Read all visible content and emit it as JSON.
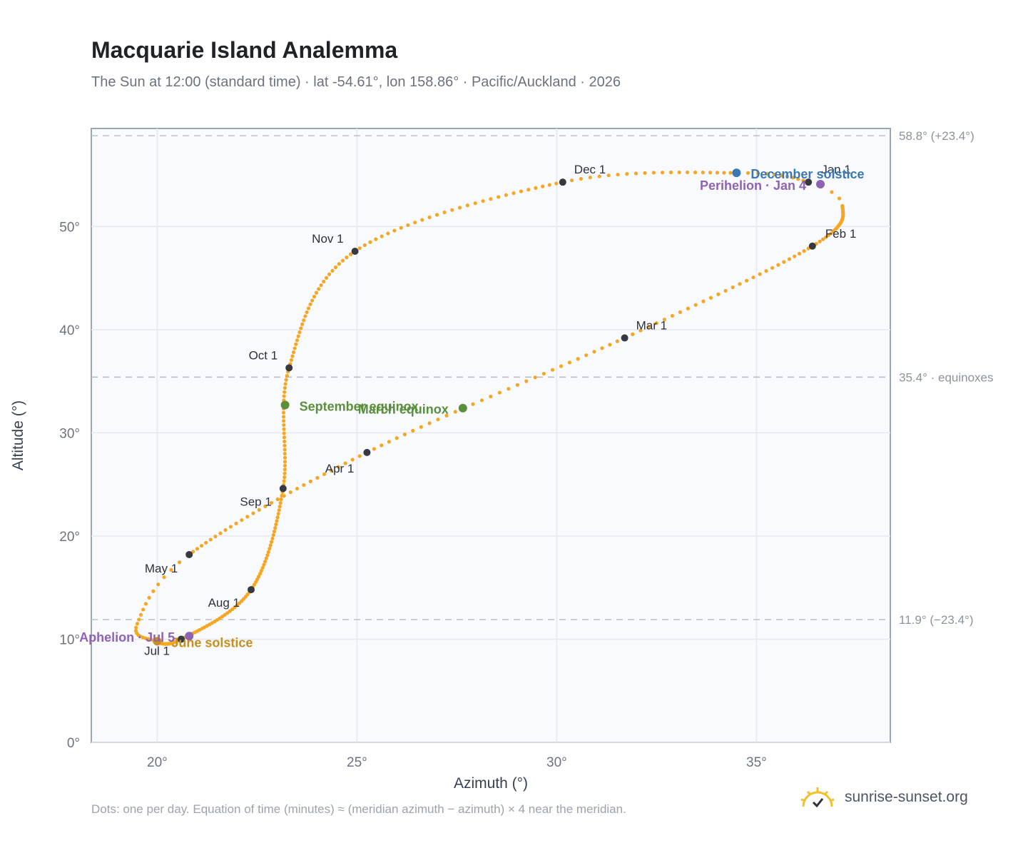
{
  "title": "Macquarie Island Analemma",
  "subtitle": "The Sun at 12:00 (standard time) · lat -54.61°, lon 158.86° · Pacific/Auckland · 2026",
  "footnote": "Dots: one per day. Equation of time (minutes) ≈ (meridian azimuth − azimuth) × 4 near the meridian.",
  "brand": {
    "text": "sunrise-sunset.org",
    "icon": "sun-logo-icon",
    "color": "#f2c029"
  },
  "chart_data": {
    "type": "scatter",
    "title": "Macquarie Island Analemma",
    "xlabel": "Azimuth (°)",
    "ylabel": "Altitude (°)",
    "xlim": [
      18.35,
      38.35
    ],
    "ylim": [
      0,
      59.5
    ],
    "xticks": [
      20,
      25,
      30,
      35
    ],
    "xtick_labels": [
      "20°",
      "25°",
      "30°",
      "35°"
    ],
    "yticks": [
      0,
      10,
      20,
      30,
      40,
      50
    ],
    "ytick_labels": [
      "0°",
      "10°",
      "20°",
      "30°",
      "40°",
      "50°"
    ],
    "grid": true,
    "reference_lines": [
      {
        "y": 58.8,
        "label": "58.8° (+23.4°)"
      },
      {
        "y": 35.4,
        "label": "35.4° · equinoxes"
      },
      {
        "y": 11.9,
        "label": "11.9° (−23.4°)"
      }
    ],
    "colors": {
      "path": "#f5a623",
      "month": "#343a40",
      "equinox": "#5a8f3c",
      "december_solstice": "#3a78b5",
      "june_solstice": "#c8901a",
      "apsis": "#8e63b3"
    },
    "month_markers": [
      {
        "label": "Jan 1",
        "az": 36.3,
        "alt": 54.3
      },
      {
        "label": "Feb 1",
        "az": 36.4,
        "alt": 48.1
      },
      {
        "label": "Mar 1",
        "az": 31.7,
        "alt": 39.2
      },
      {
        "label": "Apr 1",
        "az": 25.25,
        "alt": 28.1
      },
      {
        "label": "May 1",
        "az": 20.8,
        "alt": 18.2
      },
      {
        "label": "Jul 1",
        "az": 20.6,
        "alt": 10.0
      },
      {
        "label": "Aug 1",
        "az": 22.35,
        "alt": 14.8
      },
      {
        "label": "Sep 1",
        "az": 23.15,
        "alt": 24.6
      },
      {
        "label": "Oct 1",
        "az": 23.3,
        "alt": 36.3
      },
      {
        "label": "Nov 1",
        "az": 24.95,
        "alt": 47.6
      },
      {
        "label": "Dec 1",
        "az": 30.15,
        "alt": 54.3
      }
    ],
    "events": [
      {
        "label": "December solstice",
        "az": 34.5,
        "alt": 55.2
      },
      {
        "label": "Perihelion · Jan 4",
        "az": 36.6,
        "alt": 54.1
      },
      {
        "label": "March equinox",
        "az": 27.65,
        "alt": 32.4
      },
      {
        "label": "September equinox",
        "az": 23.2,
        "alt": 32.7
      },
      {
        "label": "June solstice",
        "az": 20.0,
        "alt": 9.8
      },
      {
        "label": "Aphelion · Jul 5",
        "az": 20.8,
        "alt": 10.3
      }
    ]
  }
}
